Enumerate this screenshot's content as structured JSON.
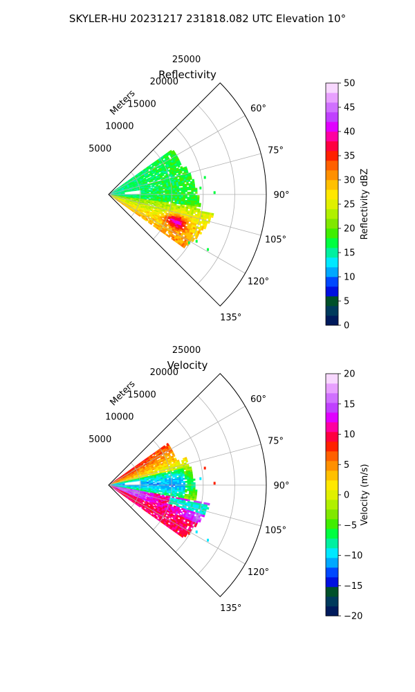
{
  "figure": {
    "suptitle": "SKYLER-HU  20231217  231818.082 UTC Elevation 10°"
  },
  "chart_data": [
    {
      "type": "heatmap",
      "subtype": "polar-sector (PPI radar)",
      "title": "Reflectivity",
      "radial_label": "Meters",
      "radial_ticks": [
        5000,
        10000,
        15000,
        20000,
        25000
      ],
      "angle_ticks": [
        "60°",
        "75°",
        "90°",
        "105°",
        "120°",
        "135°"
      ],
      "angle_range_deg": [
        45,
        135
      ],
      "range_m": [
        0,
        25000
      ],
      "grid": true,
      "colorbar": {
        "label": "Reflectivity dBZ",
        "ticks": [
          0,
          5,
          10,
          15,
          20,
          25,
          30,
          35,
          40,
          45,
          50
        ],
        "range": [
          0,
          50
        ],
        "colors": [
          "#001a5c",
          "#003a5c",
          "#00502a",
          "#0010e0",
          "#0048ff",
          "#00a8ff",
          "#00e8ff",
          "#00f0a0",
          "#00ff40",
          "#40ee00",
          "#80e800",
          "#b0f000",
          "#e0f000",
          "#ffe800",
          "#ffc000",
          "#ff9000",
          "#ff6000",
          "#ff2000",
          "#ff0040",
          "#ff00a0",
          "#e000ff",
          "#c040ff",
          "#d070ff",
          "#e8a0ff",
          "#f8d8ff"
        ]
      },
      "echo_regions": [
        {
          "az": [
            56,
            110
          ],
          "r_m": [
            2000,
            13000
          ],
          "value_dbz": "15-20"
        },
        {
          "az": [
            100,
            122
          ],
          "r_m": [
            2000,
            17000
          ],
          "value_dbz": "20-30"
        },
        {
          "az": [
            108,
            116
          ],
          "r_m": [
            9000,
            13000
          ],
          "value_dbz": "30-37"
        }
      ]
    },
    {
      "type": "heatmap",
      "subtype": "polar-sector (PPI radar)",
      "title": "Velocity",
      "radial_label": "Meters",
      "radial_ticks": [
        5000,
        10000,
        15000,
        20000,
        25000
      ],
      "angle_ticks": [
        "60°",
        "75°",
        "90°",
        "105°",
        "120°",
        "135°"
      ],
      "angle_range_deg": [
        45,
        135
      ],
      "range_m": [
        0,
        25000
      ],
      "grid": true,
      "colorbar": {
        "label": "Velocity (m/s)",
        "ticks": [
          -20,
          -15,
          -10,
          -5,
          0,
          5,
          10,
          15,
          20
        ],
        "range": [
          -20,
          20
        ],
        "colors": [
          "#001a5c",
          "#003a5c",
          "#00502a",
          "#0010e0",
          "#0048ff",
          "#00a8ff",
          "#00e8ff",
          "#00f0a0",
          "#00ff40",
          "#40ee00",
          "#80e800",
          "#b0f000",
          "#e0f000",
          "#ffe800",
          "#ffc000",
          "#ff9000",
          "#ff6000",
          "#ff2000",
          "#ff0040",
          "#ff00a0",
          "#e000ff",
          "#c040ff",
          "#d070ff",
          "#e8a0ff",
          "#f8d8ff"
        ]
      },
      "echo_regions": [
        {
          "az": [
            55,
            80
          ],
          "r_m": [
            1000,
            11000
          ],
          "value_ms": "5 to 12"
        },
        {
          "az": [
            78,
            102
          ],
          "r_m": [
            3000,
            13000
          ],
          "value_ms": "-12 to -5"
        },
        {
          "az": [
            102,
            120
          ],
          "r_m": [
            4000,
            14000
          ],
          "value_ms": "10 to 17"
        },
        {
          "az": [
            112,
            124
          ],
          "r_m": [
            2000,
            17000
          ],
          "value_ms": "8 to 12"
        }
      ]
    }
  ]
}
